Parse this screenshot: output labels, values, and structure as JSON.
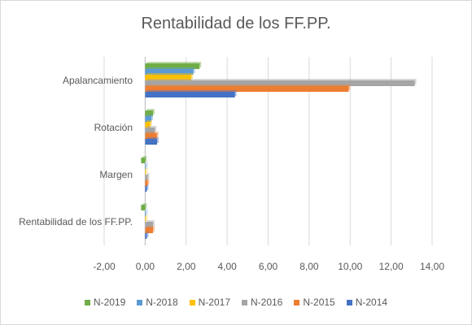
{
  "chart_data": {
    "type": "bar",
    "orientation": "horizontal",
    "title": "Rentabilidad de los FF.PP.",
    "categories": [
      "Apalancamiento",
      "Rotación",
      "Margen",
      "Rentabilidad de los FF.PP."
    ],
    "series": [
      {
        "name": "N-2019",
        "color": "#70ad47",
        "values": [
          2.65,
          0.38,
          -0.2,
          -0.2
        ]
      },
      {
        "name": "N-2018",
        "color": "#5b9bd5",
        "values": [
          2.35,
          0.3,
          0.04,
          0.04
        ]
      },
      {
        "name": "N-2017",
        "color": "#ffc000",
        "values": [
          2.25,
          0.25,
          0.03,
          0.04
        ]
      },
      {
        "name": "N-2016",
        "color": "#a5a5a5",
        "values": [
          13.15,
          0.47,
          0.12,
          0.38
        ]
      },
      {
        "name": "N-2015",
        "color": "#ed7d31",
        "values": [
          9.93,
          0.57,
          0.12,
          0.38
        ]
      },
      {
        "name": "N-2014",
        "color": "#4472c4",
        "values": [
          4.38,
          0.58,
          0.08,
          0.08
        ]
      }
    ],
    "xlim": [
      -2,
      14
    ],
    "xticks": [
      "-2,00",
      "0,00",
      "2,00",
      "4,00",
      "6,00",
      "8,00",
      "10,00",
      "12,00",
      "14,00"
    ],
    "grid": true,
    "legend_position": "bottom"
  }
}
